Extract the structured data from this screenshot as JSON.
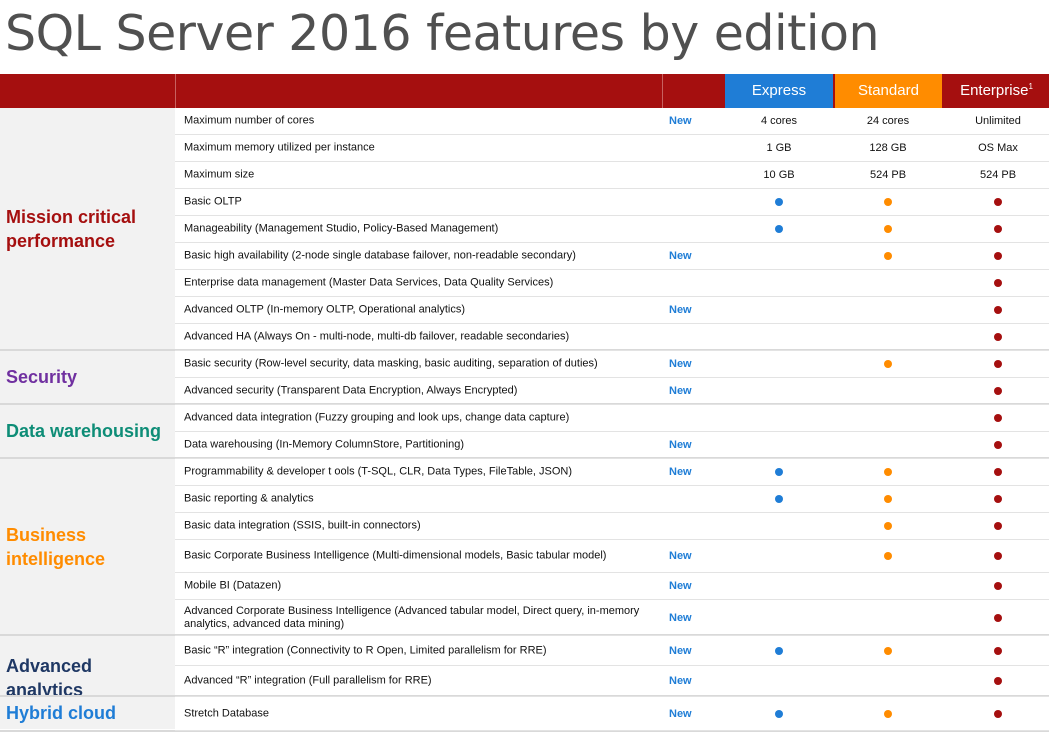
{
  "title": "SQL Server 2016 features by edition",
  "colors": {
    "header_bg": "#a50f0f",
    "express": "#1f7dd6",
    "standard": "#ff8c00",
    "enterprise": "#a50f0f",
    "new_badge": "#1f7dd6"
  },
  "editions": [
    {
      "name": "Express",
      "superscript": "",
      "color": "#1f7dd6"
    },
    {
      "name": "Standard",
      "superscript": "",
      "color": "#ff8c00"
    },
    {
      "name": "Enterprise",
      "superscript": "1",
      "color": "#a50f0f"
    }
  ],
  "categories": [
    {
      "name": "Mission critical performance",
      "color": "#a50f0f"
    },
    {
      "name": "Security",
      "color": "#7030a0"
    },
    {
      "name": "Data warehousing",
      "color": "#0e8d77"
    },
    {
      "name": "Business intelligence",
      "color": "#ff8c00"
    },
    {
      "name": "Advanced analytics",
      "color": "#1f3864"
    },
    {
      "name": "Hybrid cloud",
      "color": "#1f7dd6"
    }
  ],
  "rows": [
    {
      "feature": "Maximum number of cores",
      "new": "New",
      "express": "4 cores",
      "standard": "24 cores",
      "enterprise": "Unlimited"
    },
    {
      "feature": "Maximum memory utilized per instance",
      "new": "",
      "express": "1 GB",
      "standard": "128 GB",
      "enterprise": "OS Max"
    },
    {
      "feature": "Maximum size",
      "new": "",
      "express": "10 GB",
      "standard": "524 PB",
      "enterprise": "524 PB"
    },
    {
      "feature": "Basic OLTP",
      "new": "",
      "express": "dot",
      "standard": "dot",
      "enterprise": "dot"
    },
    {
      "feature": "Manageability (Management Studio, Policy-Based Management)",
      "new": "",
      "express": "dot",
      "standard": "dot",
      "enterprise": "dot"
    },
    {
      "feature": "Basic high availability (2-node single database failover, non-readable secondary)",
      "new": "New",
      "express": "",
      "standard": "dot",
      "enterprise": "dot"
    },
    {
      "feature": "Enterprise data management (Master Data Services, Data Quality Services)",
      "new": "",
      "express": "",
      "standard": "",
      "enterprise": "dot"
    },
    {
      "feature": "Advanced OLTP (In-memory OLTP, Operational analytics)",
      "new": "New",
      "express": "",
      "standard": "",
      "enterprise": "dot"
    },
    {
      "feature": "Advanced HA (Always On - multi-node, multi-db failover, readable secondaries)",
      "new": "",
      "express": "",
      "standard": "",
      "enterprise": "dot"
    },
    {
      "feature": "Basic security (Row-level security, data masking, basic auditing, separation of duties)",
      "new": "New",
      "express": "",
      "standard": "dot",
      "enterprise": "dot"
    },
    {
      "feature": "Advanced security (Transparent Data Encryption, Always Encrypted)",
      "new": "New",
      "express": "",
      "standard": "",
      "enterprise": "dot"
    },
    {
      "feature": "Advanced data integration (Fuzzy grouping and look ups, change data capture)",
      "new": "",
      "express": "",
      "standard": "",
      "enterprise": "dot"
    },
    {
      "feature": "Data warehousing (In-Memory ColumnStore, Partitioning)",
      "new": "New",
      "express": "",
      "standard": "",
      "enterprise": "dot"
    },
    {
      "feature": "Programmability & developer  t ools (T-SQL, CLR, Data Types, FileTable, JSON)",
      "new": "New",
      "express": "dot",
      "standard": "dot",
      "enterprise": "dot"
    },
    {
      "feature": "Basic reporting & analytics",
      "new": "",
      "express": "dot",
      "standard": "dot",
      "enterprise": "dot"
    },
    {
      "feature": "Basic data integration (SSIS, built-in connectors)",
      "new": "",
      "express": "",
      "standard": "dot",
      "enterprise": "dot"
    },
    {
      "feature": "Basic Corporate Business Intelligence (Multi-dimensional models, Basic tabular model)",
      "new": "New",
      "express": "",
      "standard": "dot",
      "enterprise": "dot"
    },
    {
      "feature": "Mobile BI (Datazen)",
      "new": "New",
      "express": "",
      "standard": "",
      "enterprise": "dot"
    },
    {
      "feature": "Advanced Corporate  Business  Intelligence (Advanced tabular model, Direct query, in-memory analytics, advanced data mining)",
      "new": "New",
      "express": "",
      "standard": "",
      "enterprise": "dot"
    },
    {
      "feature": "Basic “R” integration (Connectivity to R Open, Limited parallelism for RRE)",
      "new": "New",
      "express": "dot",
      "standard": "dot",
      "enterprise": "dot"
    },
    {
      "feature": "Advanced “R” integration (Full parallelism for RRE)",
      "new": "New",
      "express": "",
      "standard": "",
      "enterprise": "dot"
    },
    {
      "feature": "Stretch Database",
      "new": "New",
      "express": "dot",
      "standard": "dot",
      "enterprise": "dot"
    }
  ]
}
